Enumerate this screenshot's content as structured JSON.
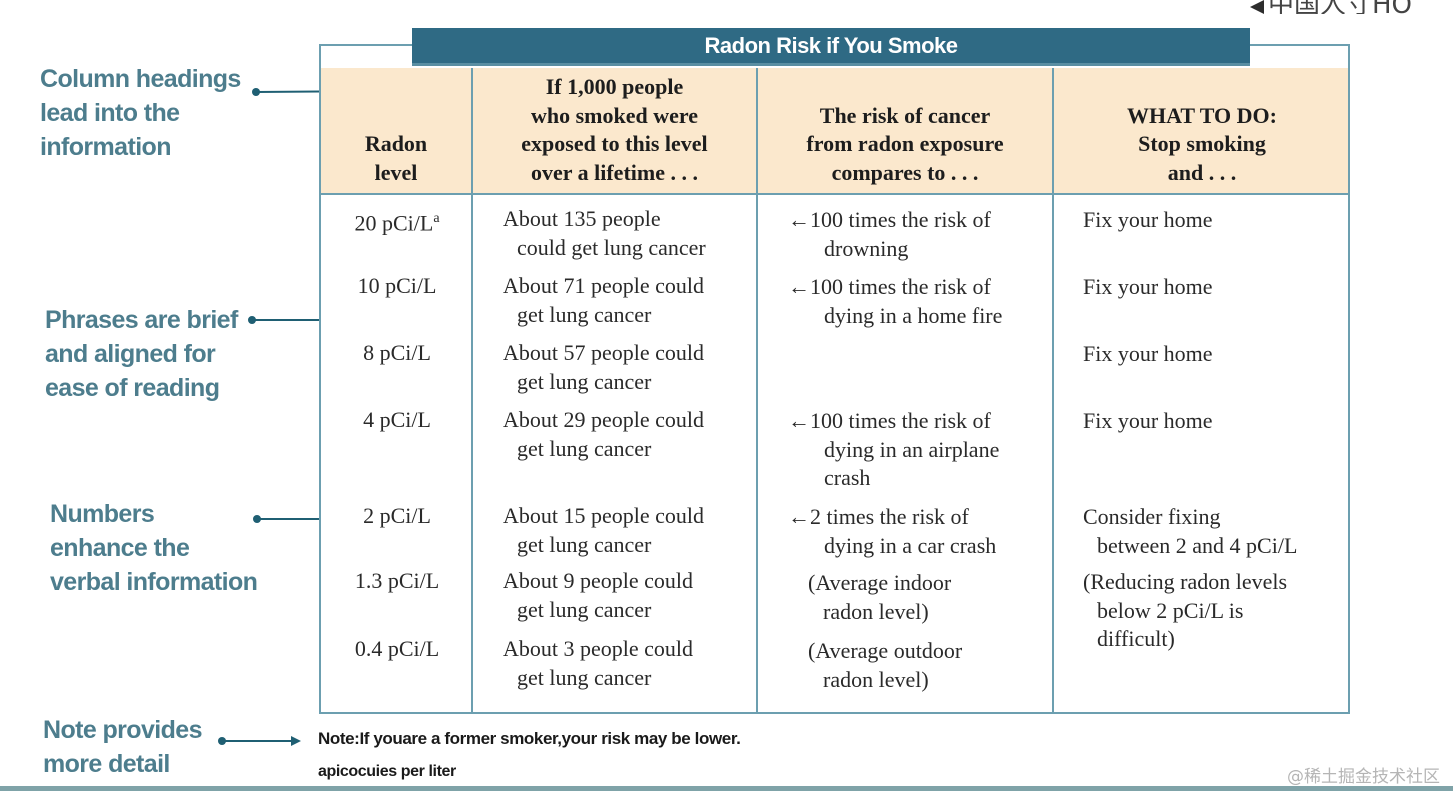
{
  "corner_text": "中国人寸HO",
  "title": "Radon Risk if You Smoke",
  "headers": [
    [
      "Radon",
      "level"
    ],
    [
      "If 1,000 people",
      "who smoked were",
      "exposed to this level",
      "over a lifetime . . ."
    ],
    [
      "The risk of cancer",
      "from radon exposure",
      "compares to . . ."
    ],
    [
      "WHAT TO DO:",
      "Stop smoking",
      "and . . ."
    ]
  ],
  "rows": [
    {
      "level": "20 pCi/L",
      "level_sup": "a",
      "people": [
        "About 135 people",
        "could get lung cancer"
      ],
      "risk": [
        "←100 times the risk of",
        "drowning"
      ],
      "action": [
        "Fix your home"
      ]
    },
    {
      "level": "10 pCi/L",
      "people": [
        "About 71 people could",
        "get lung cancer"
      ],
      "risk": [
        "←100 times the risk of",
        "dying in a home fire"
      ],
      "action": [
        "Fix your home"
      ]
    },
    {
      "level": "8 pCi/L",
      "people": [
        "About 57 people could",
        "get lung cancer"
      ],
      "risk": [],
      "action": [
        "Fix your home"
      ]
    },
    {
      "level": "4 pCi/L",
      "people": [
        "About 29 people could",
        "get lung cancer"
      ],
      "risk": [
        "←100 times the risk of",
        "dying in an airplane",
        "crash"
      ],
      "action": [
        "Fix your home"
      ]
    },
    {
      "level": "2 pCi/L",
      "people": [
        "About 15 people could",
        "get lung cancer"
      ],
      "risk": [
        "←2 times the risk of",
        "dying in a car crash"
      ],
      "action": [
        "Consider fixing",
        "between 2 and 4 pCi/L"
      ]
    },
    {
      "level": "1.3 pCi/L",
      "people": [
        "About 9 people could",
        "get lung cancer"
      ],
      "risk": [
        "(Average indoor",
        "radon level)"
      ],
      "action": [
        "(Reducing radon levels",
        "below 2 pCi/L is",
        "difficult)"
      ]
    },
    {
      "level": "0.4 pCi/L",
      "people": [
        "About 3 people could",
        "get lung cancer"
      ],
      "risk": [
        "(Average outdoor",
        "radon level)"
      ],
      "action": []
    }
  ],
  "callouts": [
    [
      "Column headings",
      "lead into the",
      "information"
    ],
    [
      "Phrases are brief",
      "and aligned for",
      "ease of reading"
    ],
    [
      "Numbers",
      "enhance the",
      "verbal information"
    ],
    [
      "Note provides",
      "more detail"
    ]
  ],
  "note": "Note:If youare a former smoker,your risk may be lower.",
  "footnote": "apicocuies per liter",
  "watermark": "@稀土掘金技术社区",
  "colors": {
    "title_bar": "#2f6a84",
    "header_band": "#fbe8cd",
    "border": "#6c9fb0",
    "callout_text": "#4d7d8d",
    "arrow": "#1f5f73"
  }
}
